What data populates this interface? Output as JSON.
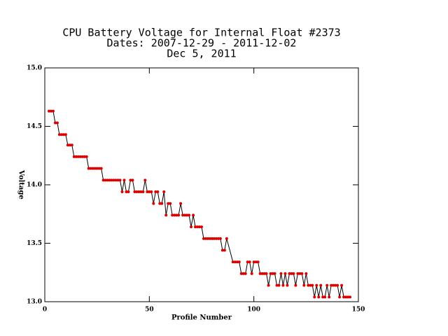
{
  "chart_data": {
    "type": "line",
    "title": [
      "CPU Battery Voltage for Internal Float #2373",
      "Dates:  2007-12-29 -  2011-12-02",
      "Dec  5, 2011"
    ],
    "x_label": "Profile Number",
    "y_label": "Voltage",
    "x": [
      2,
      3,
      4,
      5,
      6,
      7,
      8,
      9,
      10,
      11,
      12,
      13,
      14,
      15,
      16,
      17,
      18,
      19,
      20,
      21,
      22,
      23,
      24,
      25,
      26,
      27,
      28,
      29,
      30,
      31,
      32,
      33,
      34,
      35,
      36,
      37,
      38,
      39,
      40,
      41,
      42,
      43,
      44,
      45,
      46,
      47,
      48,
      49,
      50,
      51,
      52,
      53,
      54,
      55,
      56,
      57,
      58,
      59,
      60,
      61,
      62,
      63,
      64,
      65,
      66,
      67,
      68,
      69,
      70,
      71,
      72,
      73,
      74,
      75,
      76,
      77,
      78,
      79,
      80,
      81,
      82,
      83,
      84,
      85,
      86,
      87,
      90,
      91,
      92,
      93,
      94,
      95,
      96,
      97,
      98,
      99,
      100,
      101,
      102,
      103,
      104,
      105,
      106,
      107,
      108,
      109,
      110,
      111,
      112,
      113,
      114,
      115,
      116,
      117,
      118,
      119,
      120,
      121,
      122,
      123,
      124,
      125,
      126,
      127,
      128,
      129,
      130,
      131,
      132,
      133,
      134,
      135,
      136,
      137,
      138,
      139,
      140,
      141,
      142,
      143,
      144,
      145,
      146
    ],
    "series": [
      {
        "name": "Voltage",
        "color": "#000000",
        "marker_color": "#dd0000",
        "values": [
          14.63,
          14.63,
          14.63,
          14.53,
          14.53,
          14.43,
          14.43,
          14.43,
          14.43,
          14.34,
          14.34,
          14.34,
          14.24,
          14.24,
          14.24,
          14.24,
          14.24,
          14.24,
          14.24,
          14.14,
          14.14,
          14.14,
          14.14,
          14.14,
          14.14,
          14.14,
          14.04,
          14.04,
          14.04,
          14.04,
          14.04,
          14.04,
          14.04,
          14.04,
          14.04,
          13.94,
          14.04,
          13.94,
          13.94,
          14.04,
          14.04,
          13.94,
          13.94,
          13.94,
          13.94,
          13.94,
          14.04,
          13.94,
          13.94,
          13.94,
          13.84,
          13.94,
          13.94,
          13.84,
          13.84,
          13.94,
          13.74,
          13.84,
          13.84,
          13.74,
          13.74,
          13.74,
          13.74,
          13.84,
          13.74,
          13.74,
          13.74,
          13.74,
          13.64,
          13.74,
          13.64,
          13.64,
          13.64,
          13.64,
          13.54,
          13.54,
          13.54,
          13.54,
          13.54,
          13.54,
          13.54,
          13.54,
          13.54,
          13.44,
          13.44,
          13.54,
          13.34,
          13.34,
          13.34,
          13.34,
          13.24,
          13.24,
          13.24,
          13.34,
          13.34,
          13.24,
          13.34,
          13.34,
          13.34,
          13.24,
          13.24,
          13.24,
          13.24,
          13.14,
          13.24,
          13.24,
          13.24,
          13.14,
          13.14,
          13.24,
          13.14,
          13.24,
          13.14,
          13.24,
          13.24,
          13.24,
          13.14,
          13.24,
          13.24,
          13.24,
          13.14,
          13.24,
          13.14,
          13.14,
          13.14,
          13.04,
          13.14,
          13.04,
          13.14,
          13.04,
          13.04,
          13.14,
          13.04,
          13.14,
          13.14,
          13.14,
          13.14,
          13.04,
          13.14,
          13.04,
          13.04,
          13.04,
          13.04
        ]
      }
    ],
    "xlim": [
      0,
      150
    ],
    "xticks": [
      0,
      50,
      100,
      150
    ],
    "ylim": [
      13,
      15
    ],
    "yticks": [
      {
        "value": 13,
        "label": "13.0"
      },
      13.5,
      {
        "value": 14,
        "label": "14.0"
      },
      14.5,
      {
        "value": 15,
        "label": "15.0"
      }
    ]
  }
}
